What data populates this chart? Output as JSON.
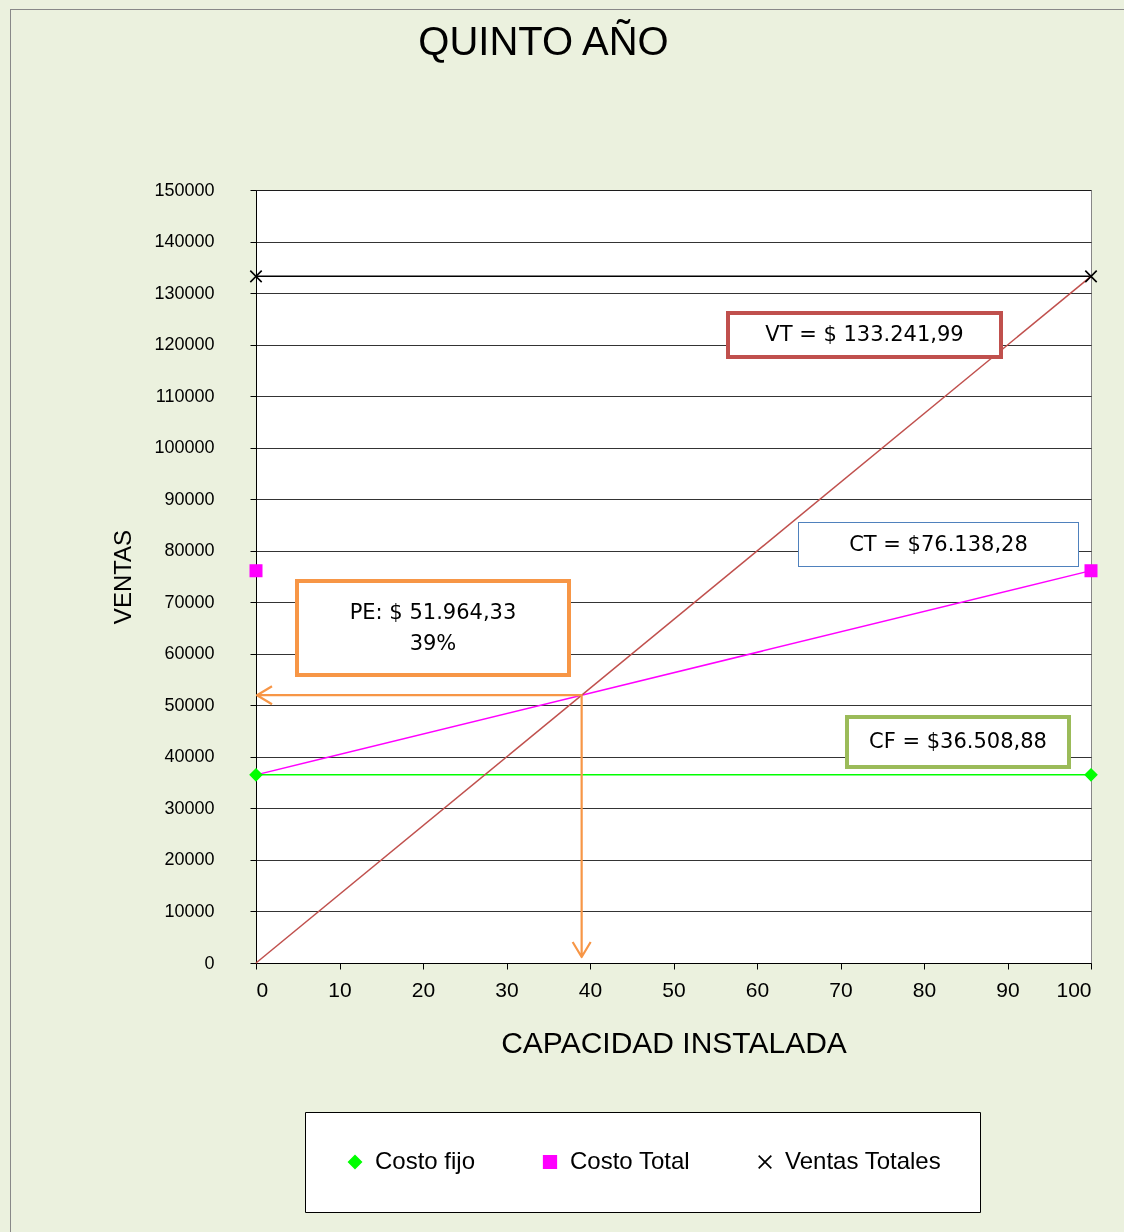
{
  "chart_data": {
    "type": "line",
    "title": "QUINTO  AÑO",
    "xlabel": "CAPACIDAD INSTALADA",
    "ylabel": "VENTAS",
    "xlim": [
      0,
      100
    ],
    "xticks": [
      0,
      10,
      20,
      30,
      40,
      50,
      60,
      70,
      80,
      90,
      100
    ],
    "ylim": [
      0,
      150000
    ],
    "yticks": [
      0,
      10000,
      20000,
      30000,
      40000,
      50000,
      60000,
      70000,
      80000,
      90000,
      100000,
      110000,
      120000,
      130000,
      140000,
      150000
    ],
    "x": [
      0,
      100
    ],
    "grid": "y",
    "legend": "bottom",
    "series": [
      {
        "name": "Costo fijo",
        "color": "#00ff00",
        "marker": "diamond",
        "values": [
          36508.88,
          36508.88
        ]
      },
      {
        "name": "Costo Total",
        "type": "scatter",
        "color": "#ff00ff",
        "marker": "square",
        "values": [
          76138.28,
          76138.28
        ]
      },
      {
        "name": "Ventas Totales",
        "color": "#000000",
        "marker": "cross",
        "values": [
          133241.99,
          133241.99
        ]
      },
      {
        "color": "#ff00ff",
        "marker": "none",
        "values": [
          36508.88,
          76138.28
        ]
      },
      {
        "color": "#c0504d",
        "marker": "none",
        "values": [
          0,
          133241.99
        ]
      }
    ],
    "annotations": [
      "VT =  $ 133.241,99",
      "CT = $76.138,28",
      "CF = $36.508,88",
      "PE: $ 51.964,33\n39%"
    ]
  }
}
